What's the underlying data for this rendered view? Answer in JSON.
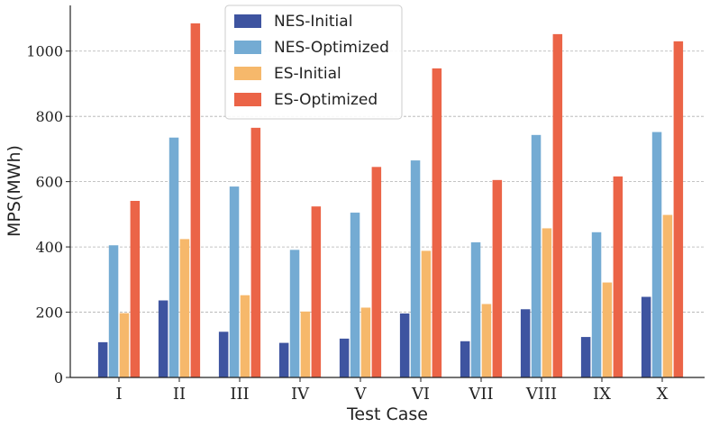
{
  "chart_data": {
    "type": "bar",
    "title": "",
    "xlabel": "Test Case",
    "ylabel": "MPS(MWh)",
    "categories": [
      "I",
      "II",
      "III",
      "IV",
      "V",
      "VI",
      "VII",
      "VIII",
      "IX",
      "X"
    ],
    "ylim": [
      0,
      1140
    ],
    "yticks": [
      0,
      200,
      400,
      600,
      800,
      1000
    ],
    "grid": "y-dashed",
    "legend_position": "top-center",
    "series": [
      {
        "name": "NES-Initial",
        "color": "#3e54a0",
        "values": [
          108,
          236,
          140,
          106,
          119,
          196,
          111,
          209,
          124,
          247
        ]
      },
      {
        "name": "NES-Optimized",
        "color": "#74abd3",
        "values": [
          405,
          735,
          585,
          391,
          505,
          665,
          414,
          743,
          445,
          752
        ]
      },
      {
        "name": "ES-Initial",
        "color": "#f6b86b",
        "values": [
          197,
          424,
          252,
          202,
          214,
          388,
          225,
          457,
          291,
          498
        ]
      },
      {
        "name": "ES-Optimized",
        "color": "#eb6447",
        "values": [
          541,
          1085,
          765,
          524,
          645,
          947,
          605,
          1052,
          616,
          1030
        ]
      }
    ]
  }
}
